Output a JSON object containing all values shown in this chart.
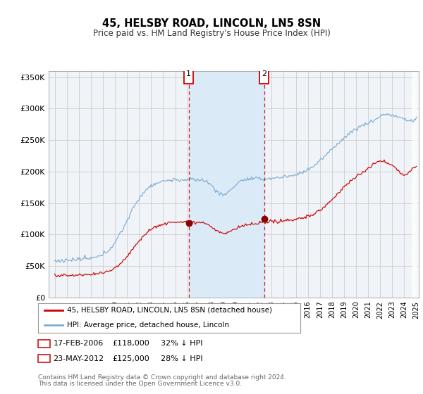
{
  "title": "45, HELSBY ROAD, LINCOLN, LN5 8SN",
  "subtitle": "Price paid vs. HM Land Registry's House Price Index (HPI)",
  "hpi_color": "#7eadd4",
  "price_color": "#cc0000",
  "marker_color": "#880000",
  "bg_color": "#ffffff",
  "grid_color": "#cccccc",
  "plot_bg": "#f0f4f8",
  "shade_color": "#dbeaf7",
  "hatch_color": "#cccccc",
  "ylim": [
    0,
    360000
  ],
  "yticks": [
    0,
    50000,
    100000,
    150000,
    200000,
    250000,
    300000,
    350000
  ],
  "ytick_labels": [
    "£0",
    "£50K",
    "£100K",
    "£150K",
    "£200K",
    "£250K",
    "£300K",
    "£350K"
  ],
  "x_start_year": 1995,
  "x_end_year": 2025,
  "transaction1": {
    "date": "17-FEB-2006",
    "price": 118000,
    "pct": "32%",
    "label": "1",
    "year": 2006.125
  },
  "transaction2": {
    "date": "23-MAY-2012",
    "price": 125000,
    "pct": "28%",
    "label": "2",
    "year": 2012.375
  },
  "legend_line1": "45, HELSBY ROAD, LINCOLN, LN5 8SN (detached house)",
  "legend_line2": "HPI: Average price, detached house, Lincoln",
  "footer1": "Contains HM Land Registry data © Crown copyright and database right 2024.",
  "footer2": "This data is licensed under the Open Government Licence v3.0."
}
